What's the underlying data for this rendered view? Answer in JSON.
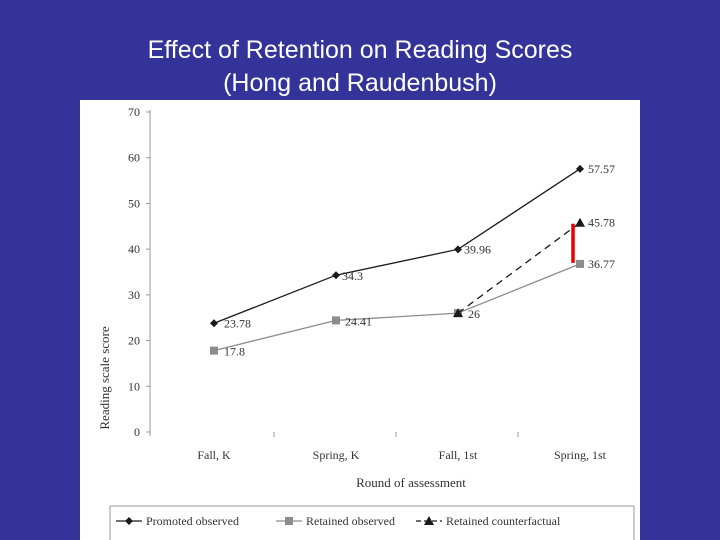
{
  "slide": {
    "title_line1": "Effect of Retention on Reading Scores",
    "title_line2": "(Hong and Raudenbush)"
  },
  "colors": {
    "background": "#333399",
    "promoted": "#1a1a1a",
    "retained": "#8c8c8c",
    "counterfactual": "#1a1a1a",
    "highlight": "#e60000"
  },
  "chart_data": {
    "type": "line",
    "title": "",
    "xlabel": "Round of assessment",
    "ylabel": "Reading scale score",
    "ylim": [
      0,
      70
    ],
    "yticks": [
      "0",
      "10",
      "20",
      "30",
      "40",
      "50",
      "60",
      "70"
    ],
    "categories": [
      "Fall, K",
      "Spring, K",
      "Fall, 1st",
      "Spring, 1st"
    ],
    "grid": false,
    "legend_position": "bottom",
    "series": [
      {
        "name": "Promoted observed",
        "values": [
          23.78,
          34.3,
          39.96,
          57.57
        ],
        "labels": [
          "23.78",
          "34.3",
          "39.96",
          "57.57"
        ],
        "marker": "diamond",
        "dash": "solid",
        "color": "#1a1a1a"
      },
      {
        "name": "Retained observed",
        "values": [
          17.8,
          24.41,
          26,
          36.77
        ],
        "labels": [
          "17.8",
          "24.41",
          "26",
          "36.77"
        ],
        "marker": "square",
        "dash": "solid",
        "color": "#8c8c8c"
      },
      {
        "name": "Retained counterfactual",
        "points": [
          {
            "category": "Fall, 1st",
            "value": 26
          },
          {
            "category": "Spring, 1st",
            "value": 45.78
          }
        ],
        "labels": [
          "",
          "45.78"
        ],
        "marker": "triangle",
        "dash": "dashed",
        "color": "#1a1a1a"
      }
    ],
    "annotation": {
      "type": "vertical-bar",
      "category": "Spring, 1st",
      "from": 36.77,
      "to": 45.78,
      "color": "#e60000"
    }
  }
}
